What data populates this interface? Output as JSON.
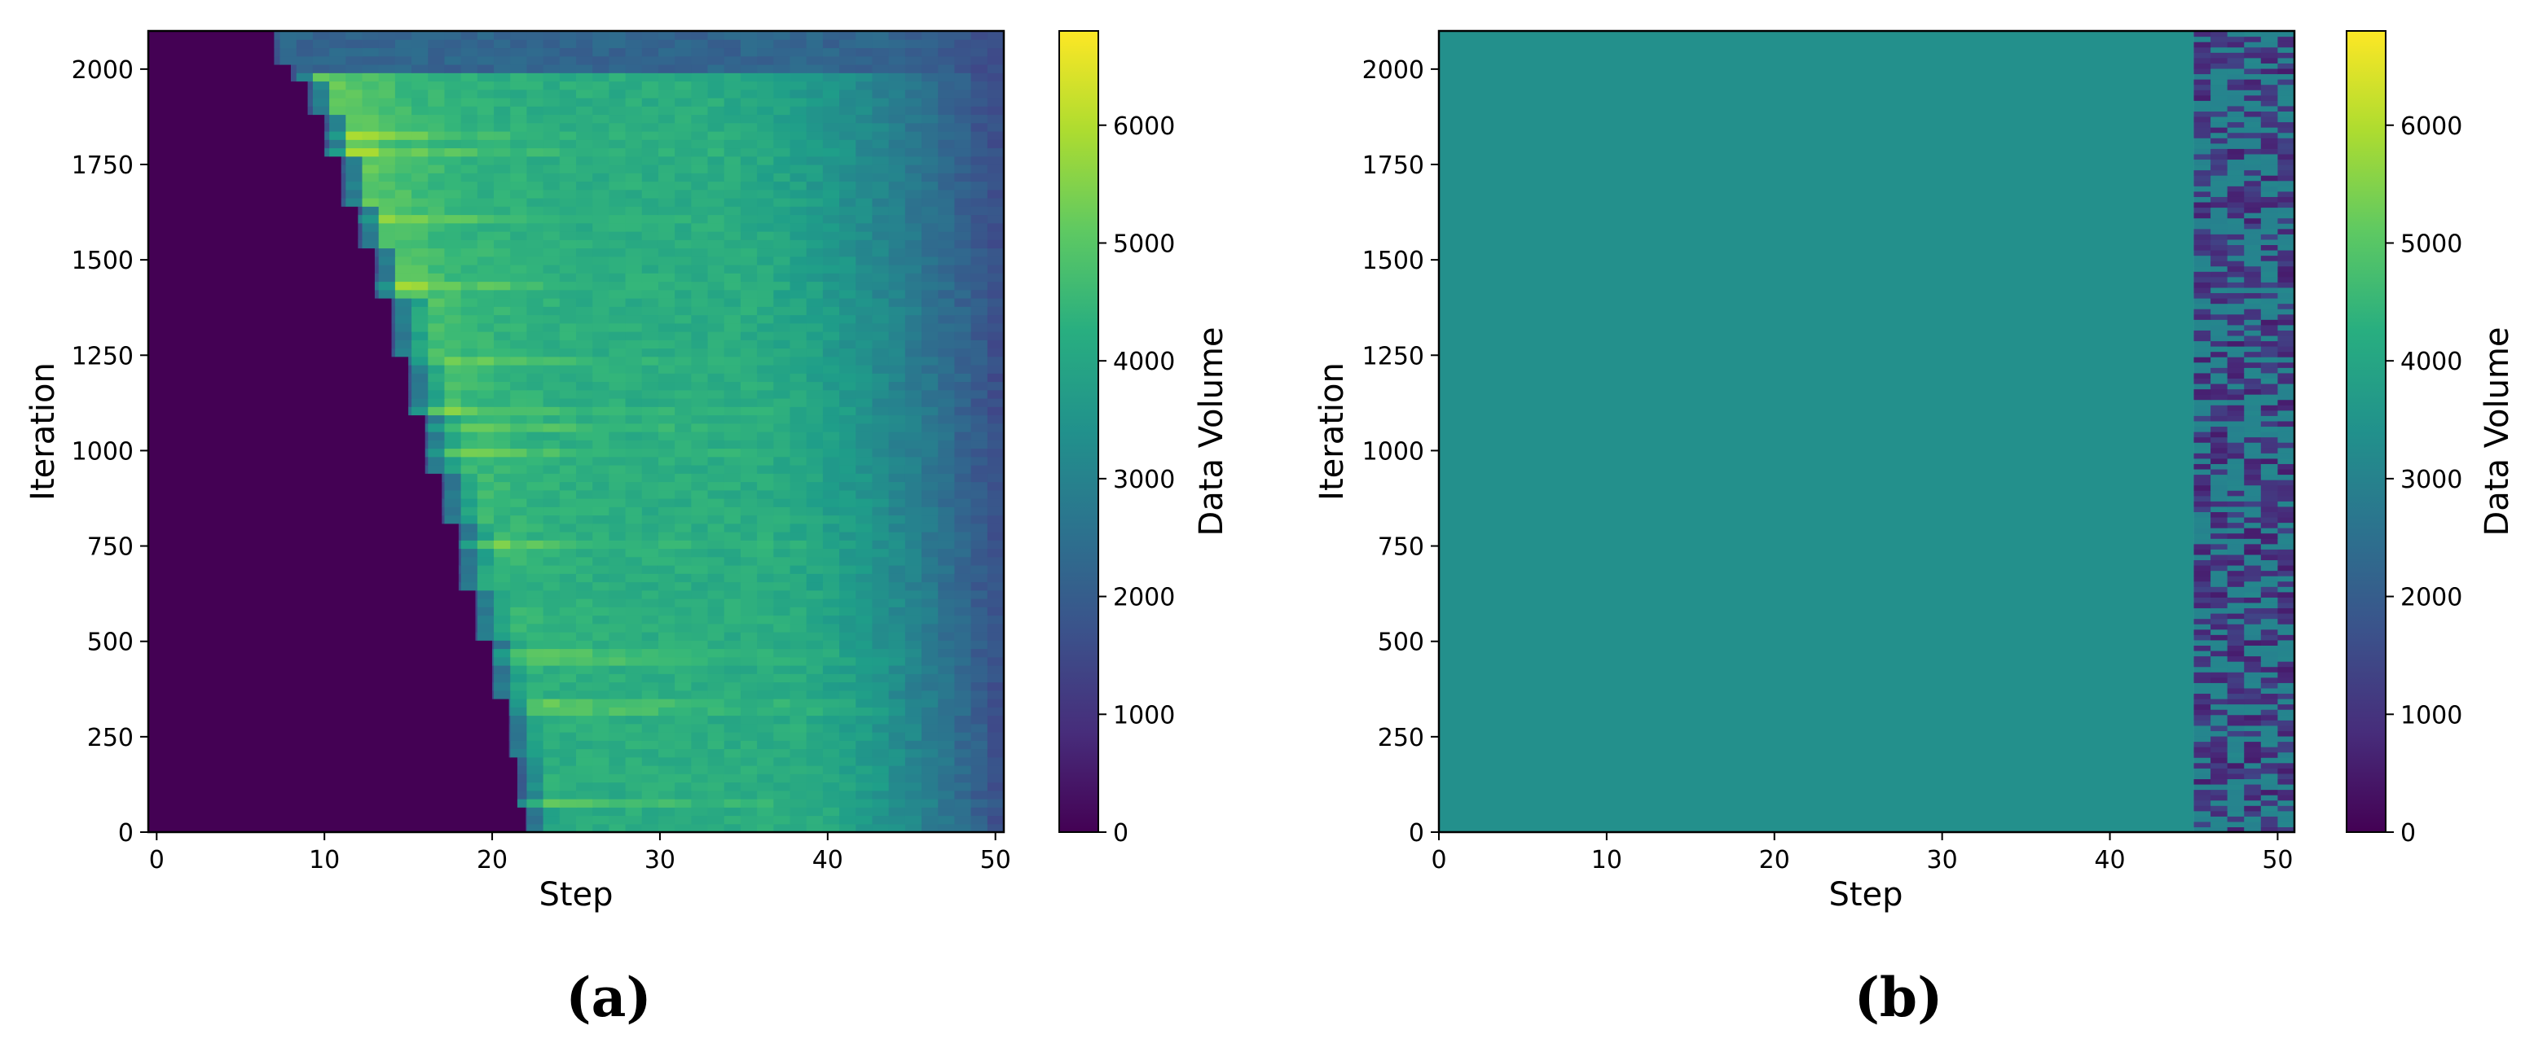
{
  "chart_data": [
    {
      "type": "heatmap",
      "panel_label": "(a)",
      "title": "",
      "xlabel": "Step",
      "ylabel": "Iteration",
      "colorbar_label": "Data Volume",
      "colormap": "viridis",
      "xlim": [
        -0.5,
        50.5
      ],
      "ylim": [
        0,
        2100
      ],
      "xticks": [
        0,
        10,
        20,
        30,
        40,
        50
      ],
      "yticks": [
        0,
        250,
        500,
        750,
        1000,
        1250,
        1500,
        1750,
        2000
      ],
      "color_range": [
        0,
        6800
      ],
      "colorbar_ticks": [
        0,
        1000,
        2000,
        3000,
        4000,
        5000,
        6000
      ],
      "description": {
        "zero_region": "Steps before a staircase boundary have value 0; boundary moves from step 22 at iteration 0 to step 7 at iteration 2100 in ~15 discrete steps",
        "boundary_start_step": [
          {
            "iteration": 0,
            "step": 22
          },
          {
            "iteration": 60,
            "step": 21.5
          },
          {
            "iteration": 200,
            "step": 21
          },
          {
            "iteration": 350,
            "step": 20
          },
          {
            "iteration": 500,
            "step": 19
          },
          {
            "iteration": 630,
            "step": 18
          },
          {
            "iteration": 800,
            "step": 17
          },
          {
            "iteration": 950,
            "step": 16
          },
          {
            "iteration": 1100,
            "step": 15
          },
          {
            "iteration": 1250,
            "step": 14
          },
          {
            "iteration": 1400,
            "step": 13
          },
          {
            "iteration": 1530,
            "step": 12
          },
          {
            "iteration": 1650,
            "step": 11
          },
          {
            "iteration": 1780,
            "step": 10
          },
          {
            "iteration": 1880,
            "step": 9
          },
          {
            "iteration": 1960,
            "step": 8
          },
          {
            "iteration": 2020,
            "step": 7
          },
          {
            "iteration": 2100,
            "step": 6.5
          }
        ],
        "peak_value": 6500,
        "typical_plateau_value": 4200,
        "tail_value_at_step_50": 1500
      }
    },
    {
      "type": "heatmap",
      "panel_label": "(b)",
      "title": "",
      "xlabel": "Step",
      "ylabel": "Iteration",
      "colorbar_label": "Data Volume",
      "colormap": "viridis",
      "xlim": [
        0,
        51
      ],
      "ylim": [
        0,
        2100
      ],
      "xticks": [
        0,
        10,
        20,
        30,
        40,
        50
      ],
      "yticks": [
        0,
        250,
        500,
        750,
        1000,
        1250,
        1500,
        1750,
        2000
      ],
      "color_range": [
        0,
        6800
      ],
      "colorbar_ticks": [
        0,
        1000,
        2000,
        3000,
        4000,
        5000,
        6000
      ],
      "description": {
        "uniform_region": {
          "steps": [
            0,
            45
          ],
          "value": 3400
        },
        "noisy_region": {
          "steps": [
            45,
            51
          ],
          "value_range": [
            500,
            3400
          ]
        }
      }
    }
  ]
}
